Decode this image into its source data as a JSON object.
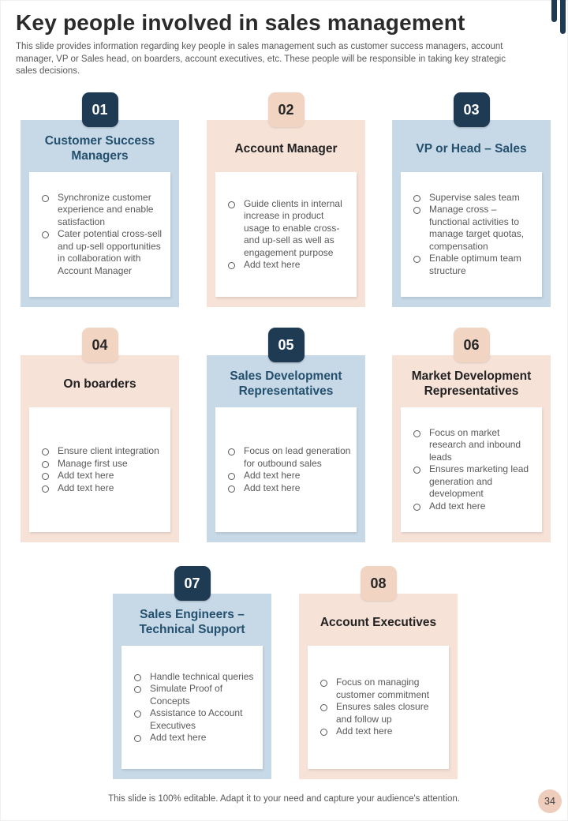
{
  "page": {
    "title": "Key people involved in sales management",
    "subtitle": "This slide provides information regarding key people in sales management such as customer success managers, account manager, VP or Sales head, on boarders, account executives, etc. These people will be responsible in taking key strategic sales decisions.",
    "footer": "This slide is 100% editable. Adapt it to your need and capture your audience's attention.",
    "page_number": "34"
  },
  "colors": {
    "navy": "#1f3b54",
    "blue_card": "#c7d8e6",
    "peach_card": "#f7e2d8",
    "peach_badge": "#f2d4c3",
    "navy_title": "#23506e",
    "body_text": "#595959"
  },
  "cards": [
    {
      "number": "01",
      "title": "Customer Success Managers",
      "bullets": [
        "Synchronize customer experience and enable satisfaction",
        "Cater potential cross-sell and up-sell opportunities in collaboration with Account Manager"
      ]
    },
    {
      "number": "02",
      "title": "Account Manager",
      "bullets": [
        "Guide clients in internal increase in product usage to enable cross- and up-sell as well as engagement purpose",
        "Add text here"
      ]
    },
    {
      "number": "03",
      "title": "VP or Head – Sales",
      "bullets": [
        "Supervise sales team",
        "Manage cross – functional activities to manage target quotas, compensation",
        "Enable optimum team structure"
      ]
    },
    {
      "number": "04",
      "title": "On boarders",
      "bullets": [
        "Ensure client integration",
        "Manage first use",
        "Add text here",
        "Add text here"
      ]
    },
    {
      "number": "05",
      "title": "Sales Development Representatives",
      "bullets": [
        "Focus on lead generation for outbound sales",
        "Add text here",
        "Add text here"
      ]
    },
    {
      "number": "06",
      "title": "Market Development Representatives",
      "bullets": [
        "Focus on market research and inbound leads",
        "Ensures marketing lead generation and development",
        "Add text here"
      ]
    },
    {
      "number": "07",
      "title": "Sales Engineers – Technical Support",
      "bullets": [
        "Handle technical queries",
        "Simulate Proof of Concepts",
        "Assistance to Account Executives",
        "Add text here"
      ]
    },
    {
      "number": "08",
      "title": "Account Executives",
      "bullets": [
        "Focus on managing customer commitment",
        "Ensures sales closure and follow up",
        "Add text here"
      ]
    }
  ]
}
